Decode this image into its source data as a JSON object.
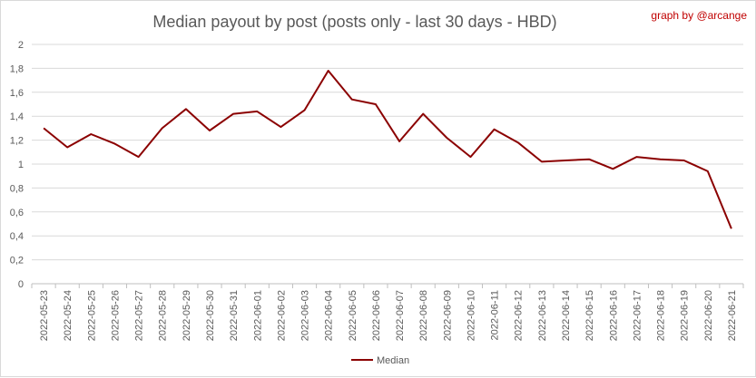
{
  "chart_data": {
    "type": "line",
    "title": "Median payout by post (posts only - last 30 days - HBD)",
    "credit": "graph by @arcange",
    "xlabel": "",
    "ylabel": "",
    "ylim": [
      0,
      2
    ],
    "yticks": [
      "0",
      "0,2",
      "0,4",
      "0,6",
      "0,8",
      "1",
      "1,2",
      "1,4",
      "1,6",
      "1,8",
      "2"
    ],
    "grid": true,
    "legend_position": "bottom",
    "line_color": "#8b0000",
    "categories": [
      "2022-05-23",
      "2022-05-24",
      "2022-05-25",
      "2022-05-26",
      "2022-05-27",
      "2022-05-28",
      "2022-05-29",
      "2022-05-30",
      "2022-05-31",
      "2022-06-01",
      "2022-06-02",
      "2022-06-03",
      "2022-06-04",
      "2022-06-05",
      "2022-06-06",
      "2022-06-07",
      "2022-06-08",
      "2022-06-09",
      "2022-06-10",
      "2022-06-11",
      "2022-06-12",
      "2022-06-13",
      "2022-06-14",
      "2022-06-15",
      "2022-06-16",
      "2022-06-17",
      "2022-06-18",
      "2022-06-19",
      "2022-06-20",
      "2022-06-21"
    ],
    "series": [
      {
        "name": "Median",
        "values": [
          1.3,
          1.14,
          1.25,
          1.17,
          1.06,
          1.3,
          1.46,
          1.28,
          1.42,
          1.44,
          1.31,
          1.45,
          1.78,
          1.54,
          1.5,
          1.19,
          1.42,
          1.22,
          1.06,
          1.29,
          1.18,
          1.02,
          1.03,
          1.04,
          0.96,
          1.06,
          1.04,
          1.03,
          0.94,
          0.46
        ]
      }
    ]
  }
}
